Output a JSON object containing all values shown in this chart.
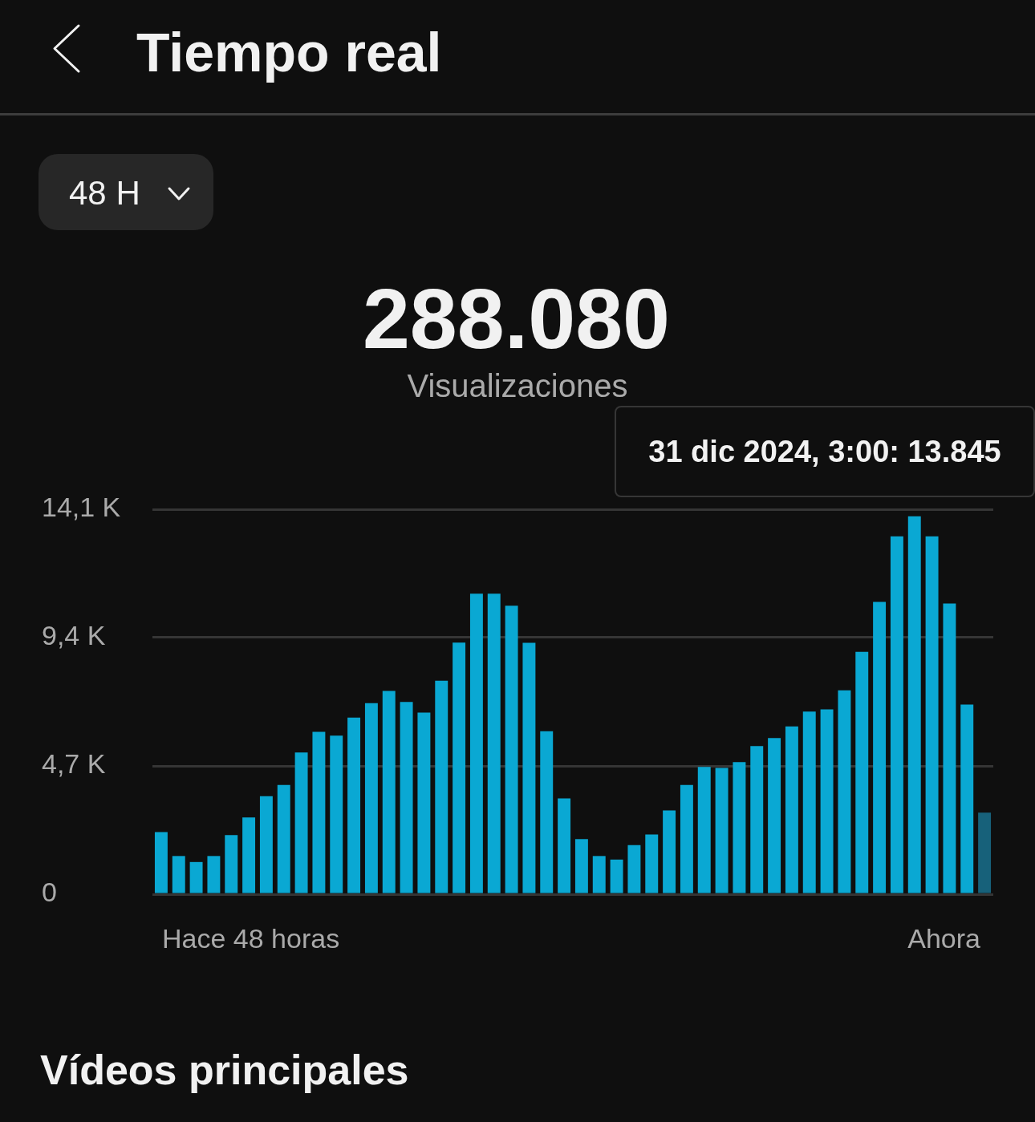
{
  "chart_data": {
    "type": "bar",
    "title": "Tiempo real",
    "categories": [
      null,
      null,
      null,
      null,
      null,
      null,
      null,
      null,
      null,
      null,
      null,
      null,
      null,
      null,
      null,
      null,
      null,
      null,
      null,
      null,
      null,
      null,
      null,
      null,
      null,
      null,
      null,
      null,
      null,
      null,
      null,
      null,
      null,
      null,
      null,
      null,
      null,
      null,
      null,
      null,
      null,
      null,
      null,
      null,
      null,
      null,
      null,
      null
    ],
    "values": [
      2.28,
      1.4,
      1.18,
      1.4,
      2.17,
      2.81,
      3.59,
      4.0,
      5.19,
      5.95,
      5.81,
      6.47,
      7.0,
      7.45,
      7.04,
      6.65,
      7.82,
      9.22,
      11.01,
      11.01,
      10.57,
      9.21,
      5.97,
      3.51,
      2.02,
      1.4,
      1.27,
      1.8,
      2.19,
      3.07,
      4.0,
      4.66,
      4.63,
      4.84,
      5.43,
      5.72,
      6.15,
      6.69,
      6.77,
      7.47,
      8.88,
      10.71,
      13.11,
      13.845,
      13.11,
      10.65,
      6.95,
      2.99
    ],
    "colors": [
      "#0aa8d3",
      "#0aa8d3",
      "#0aa8d3",
      "#0aa8d3",
      "#0aa8d3",
      "#0aa8d3",
      "#0aa8d3",
      "#0aa8d3",
      "#0aa8d3",
      "#0aa8d3",
      "#0aa8d3",
      "#0aa8d3",
      "#0aa8d3",
      "#0aa8d3",
      "#0aa8d3",
      "#0aa8d3",
      "#0aa8d3",
      "#0aa8d3",
      "#0aa8d3",
      "#0aa8d3",
      "#0aa8d3",
      "#0aa8d3",
      "#0aa8d3",
      "#0aa8d3",
      "#0aa8d3",
      "#0aa8d3",
      "#0aa8d3",
      "#0aa8d3",
      "#0aa8d3",
      "#0aa8d3",
      "#0aa8d3",
      "#0aa8d3",
      "#0aa8d3",
      "#0aa8d3",
      "#0aa8d3",
      "#0aa8d3",
      "#0aa8d3",
      "#0aa8d3",
      "#0aa8d3",
      "#0aa8d3",
      "#0aa8d3",
      "#0aa8d3",
      "#0aa8d3",
      "#0aa8d3",
      "#0aa8d3",
      "#0aa8d3",
      "#0aa8d3",
      "#17617a"
    ],
    "ylim": [
      0,
      14.1
    ],
    "yticks": [
      0,
      {
        "value": 4.7,
        "label": "4,7 K"
      },
      {
        "value": 9.4,
        "label": "9,4 K"
      },
      {
        "value": 14.1,
        "label": "14,1 K"
      }
    ],
    "grid": "y",
    "annotations": [
      "48 H",
      "288.080",
      "Visualizaciones",
      "31 dic 2024, 3:00: 13.845",
      "Hace 48 horas",
      "Ahora",
      "Vídeos principales"
    ]
  }
}
